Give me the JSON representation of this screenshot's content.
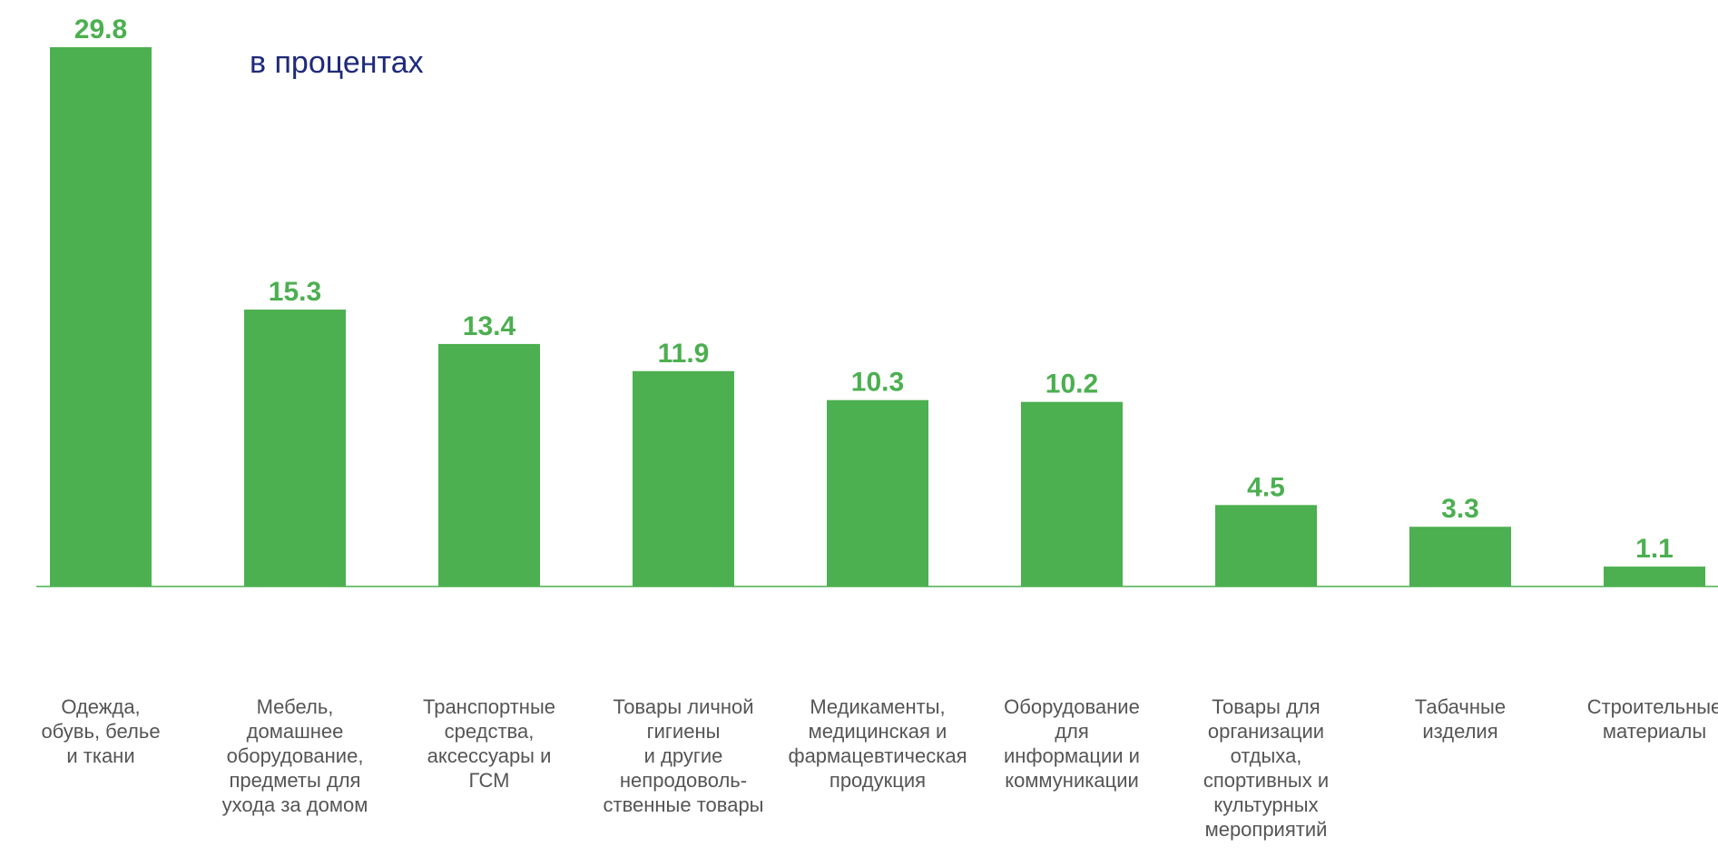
{
  "chart_data": {
    "type": "bar",
    "subtitle": "в  процентах",
    "categories": [
      "Одежда,\nобувь, белье\nи ткани",
      "Мебель,\nдомашнее\nоборудование,\nпредметы для\nухода за домом",
      "Транспортные\nсредства,\nаксессуары и\nГСМ",
      "Товары личной\nгигиены\nи другие\nнепродоволь-\nственные товары",
      "Медикаменты,\nмедицинская и\nфармацевтическая\nпродукция",
      "Оборудование\nдля\nинформации и\nкоммуникации",
      "Товары для\nорганизации\nотдыха,\nспортивных и\nкультурных\nмероприятий",
      "Табачные\nизделия",
      "Строительные\nматериалы"
    ],
    "values": [
      29.8,
      15.3,
      13.4,
      11.9,
      10.3,
      10.2,
      4.5,
      3.3,
      1.1
    ],
    "color": "#4caf50"
  }
}
